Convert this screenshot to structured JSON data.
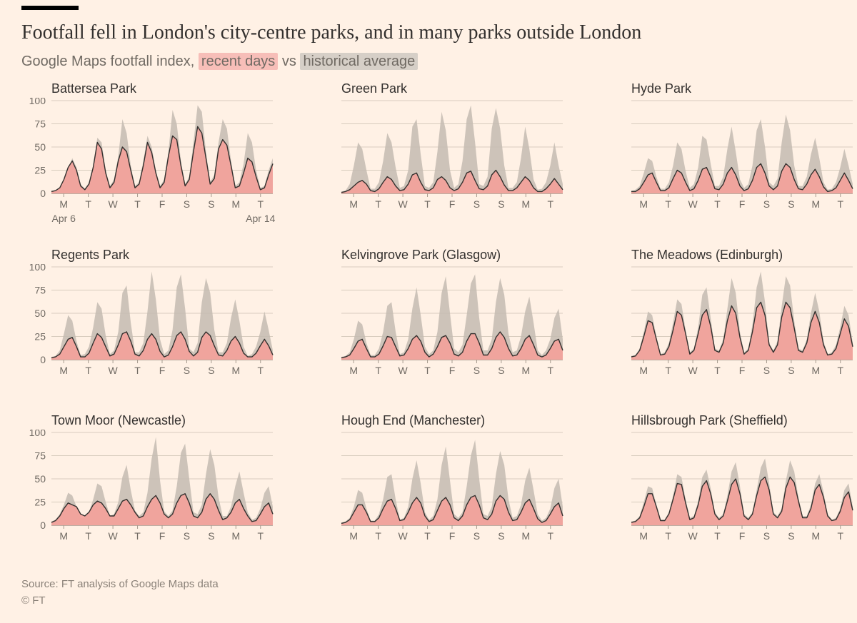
{
  "title": "Footfall fell in London's city-centre parks, and in many parks outside London",
  "subtitle": {
    "prefix": "Google Maps footfall index, ",
    "recent_label": "recent days",
    "mid": " vs ",
    "historical_label": "historical average"
  },
  "chart_style": {
    "type": "small-multiples-area",
    "background": "#fff1e5",
    "grid_color": "#d8ccbe",
    "baseline_color": "#a59a8e",
    "recent_fill": "#f4a19a",
    "recent_stroke": "#33302e",
    "historical_fill": "#c4bbb1",
    "recent_highlight_bg": "#f7beb8",
    "historical_highlight_bg": "#d6cfc7",
    "title_fontsize": 28,
    "subtitle_fontsize": 20,
    "panel_title_fontsize": 18,
    "tick_fontsize": 14,
    "ylim": [
      0,
      100
    ],
    "yticks": [
      0,
      25,
      50,
      75,
      100
    ],
    "xticks": [
      "M",
      "T",
      "W",
      "T",
      "F",
      "S",
      "S",
      "M",
      "T"
    ],
    "date_start": "Apr 6",
    "date_end": "Apr 14",
    "panel_plot_w": 310,
    "panel_plot_h": 130,
    "samples_per_day": 6,
    "days": 9
  },
  "panels": [
    {
      "title": "Battersea Park",
      "y_axis_side": "left",
      "show_dates": true,
      "historical": [
        3,
        3,
        5,
        12,
        25,
        38,
        28,
        10,
        5,
        12,
        30,
        60,
        55,
        25,
        8,
        15,
        40,
        80,
        65,
        30,
        8,
        12,
        35,
        62,
        50,
        25,
        8,
        15,
        45,
        90,
        75,
        35,
        10,
        18,
        55,
        95,
        88,
        45,
        12,
        20,
        55,
        80,
        70,
        35,
        8,
        12,
        32,
        65,
        55,
        25,
        6,
        8,
        25,
        38
      ],
      "recent": [
        2,
        3,
        6,
        15,
        28,
        35,
        25,
        8,
        4,
        10,
        28,
        55,
        48,
        22,
        6,
        12,
        35,
        50,
        45,
        25,
        6,
        10,
        30,
        55,
        44,
        22,
        6,
        12,
        40,
        62,
        58,
        30,
        8,
        15,
        45,
        72,
        65,
        38,
        10,
        16,
        48,
        58,
        52,
        30,
        6,
        8,
        22,
        38,
        34,
        18,
        4,
        6,
        20,
        32
      ]
    },
    {
      "title": "Green Park",
      "y_axis_side": "none",
      "historical": [
        2,
        3,
        10,
        30,
        55,
        48,
        25,
        5,
        5,
        12,
        35,
        65,
        55,
        28,
        6,
        8,
        25,
        72,
        80,
        42,
        8,
        6,
        12,
        45,
        88,
        68,
        25,
        6,
        10,
        35,
        80,
        95,
        55,
        10,
        8,
        18,
        70,
        92,
        70,
        30,
        6,
        6,
        12,
        38,
        72,
        48,
        15,
        4,
        5,
        12,
        30,
        55,
        30,
        10
      ],
      "recent": [
        1,
        2,
        4,
        8,
        12,
        14,
        10,
        3,
        2,
        5,
        12,
        18,
        15,
        8,
        3,
        4,
        10,
        20,
        22,
        12,
        4,
        3,
        6,
        15,
        18,
        14,
        6,
        3,
        5,
        12,
        22,
        24,
        14,
        5,
        4,
        8,
        20,
        25,
        18,
        9,
        3,
        3,
        6,
        12,
        18,
        14,
        6,
        2,
        2,
        5,
        10,
        16,
        10,
        4
      ]
    },
    {
      "title": "Hyde Park",
      "y_axis_side": "right",
      "historical": [
        3,
        4,
        8,
        22,
        38,
        35,
        18,
        5,
        5,
        12,
        30,
        55,
        48,
        24,
        6,
        10,
        28,
        62,
        58,
        32,
        8,
        8,
        18,
        48,
        72,
        45,
        15,
        6,
        10,
        30,
        68,
        80,
        50,
        12,
        8,
        16,
        55,
        85,
        68,
        30,
        8,
        8,
        18,
        42,
        60,
        38,
        12,
        4,
        5,
        12,
        28,
        48,
        30,
        10
      ],
      "recent": [
        2,
        2,
        5,
        12,
        20,
        22,
        12,
        3,
        3,
        6,
        16,
        25,
        22,
        12,
        3,
        5,
        14,
        26,
        28,
        18,
        5,
        4,
        10,
        22,
        28,
        20,
        8,
        3,
        5,
        14,
        28,
        32,
        22,
        8,
        4,
        8,
        24,
        32,
        28,
        15,
        5,
        4,
        10,
        20,
        26,
        18,
        7,
        2,
        3,
        6,
        14,
        22,
        14,
        5
      ]
    },
    {
      "title": "Regents Park",
      "y_axis_side": "left",
      "historical": [
        3,
        4,
        10,
        28,
        48,
        42,
        20,
        5,
        6,
        14,
        35,
        62,
        55,
        26,
        6,
        10,
        30,
        72,
        80,
        40,
        8,
        8,
        18,
        52,
        95,
        65,
        22,
        6,
        10,
        32,
        78,
        92,
        55,
        12,
        8,
        18,
        62,
        88,
        72,
        32,
        8,
        8,
        18,
        45,
        65,
        42,
        14,
        4,
        6,
        14,
        30,
        52,
        32,
        10
      ],
      "recent": [
        2,
        3,
        6,
        14,
        22,
        24,
        14,
        3,
        3,
        7,
        18,
        28,
        24,
        14,
        4,
        6,
        16,
        28,
        30,
        20,
        6,
        4,
        10,
        22,
        28,
        22,
        9,
        3,
        5,
        14,
        26,
        30,
        22,
        9,
        4,
        8,
        24,
        30,
        26,
        15,
        5,
        4,
        10,
        20,
        25,
        18,
        7,
        3,
        3,
        7,
        15,
        22,
        15,
        5
      ]
    },
    {
      "title": "Kelvingrove Park (Glasgow)",
      "y_axis_side": "none",
      "historical": [
        3,
        4,
        8,
        22,
        42,
        38,
        18,
        5,
        5,
        12,
        30,
        58,
        62,
        30,
        6,
        8,
        22,
        55,
        78,
        48,
        14,
        6,
        10,
        30,
        72,
        90,
        50,
        12,
        8,
        16,
        48,
        82,
        92,
        45,
        10,
        10,
        22,
        62,
        88,
        70,
        28,
        8,
        10,
        25,
        52,
        68,
        40,
        10,
        5,
        10,
        22,
        45,
        55,
        22
      ],
      "recent": [
        2,
        3,
        5,
        12,
        20,
        22,
        12,
        3,
        3,
        6,
        15,
        25,
        24,
        14,
        4,
        5,
        12,
        22,
        26,
        20,
        8,
        3,
        6,
        14,
        24,
        26,
        18,
        6,
        4,
        8,
        20,
        28,
        28,
        18,
        5,
        5,
        12,
        24,
        30,
        24,
        12,
        4,
        5,
        12,
        22,
        26,
        16,
        5,
        3,
        5,
        12,
        20,
        22,
        10
      ]
    },
    {
      "title": "The Meadows (Edinburgh)",
      "y_axis_side": "right",
      "historical": [
        4,
        5,
        12,
        30,
        52,
        48,
        25,
        6,
        8,
        18,
        40,
        65,
        60,
        32,
        8,
        12,
        35,
        70,
        78,
        45,
        12,
        10,
        22,
        55,
        88,
        72,
        30,
        8,
        12,
        38,
        78,
        95,
        62,
        18,
        10,
        20,
        58,
        90,
        80,
        42,
        12,
        10,
        22,
        50,
        72,
        52,
        20,
        6,
        8,
        16,
        35,
        58,
        48,
        18
      ],
      "recent": [
        3,
        4,
        10,
        25,
        42,
        40,
        22,
        5,
        6,
        14,
        32,
        52,
        48,
        28,
        6,
        10,
        28,
        48,
        54,
        36,
        10,
        8,
        18,
        42,
        58,
        50,
        24,
        6,
        10,
        30,
        56,
        62,
        48,
        16,
        8,
        16,
        46,
        62,
        56,
        34,
        10,
        8,
        18,
        40,
        52,
        40,
        16,
        5,
        6,
        12,
        28,
        44,
        36,
        14
      ]
    },
    {
      "title": "Town Moor (Newcastle)",
      "y_axis_side": "left",
      "historical": [
        4,
        6,
        12,
        22,
        35,
        32,
        20,
        8,
        8,
        14,
        28,
        45,
        42,
        25,
        10,
        12,
        25,
        52,
        65,
        38,
        16,
        10,
        14,
        35,
        72,
        95,
        48,
        15,
        10,
        16,
        42,
        78,
        88,
        50,
        14,
        12,
        22,
        55,
        82,
        65,
        30,
        10,
        10,
        20,
        42,
        58,
        35,
        14,
        6,
        8,
        18,
        35,
        42,
        20
      ],
      "recent": [
        3,
        5,
        10,
        18,
        24,
        22,
        20,
        12,
        10,
        14,
        22,
        26,
        24,
        18,
        10,
        10,
        18,
        26,
        28,
        22,
        14,
        8,
        10,
        20,
        28,
        32,
        24,
        12,
        8,
        12,
        24,
        32,
        34,
        24,
        10,
        8,
        14,
        28,
        34,
        28,
        16,
        6,
        8,
        14,
        24,
        28,
        18,
        10,
        4,
        5,
        12,
        20,
        24,
        12
      ]
    },
    {
      "title": "Hough End (Manchester)",
      "y_axis_side": "none",
      "historical": [
        3,
        4,
        8,
        20,
        38,
        35,
        18,
        5,
        5,
        12,
        28,
        52,
        55,
        28,
        6,
        8,
        20,
        50,
        70,
        45,
        14,
        6,
        10,
        28,
        65,
        85,
        48,
        12,
        8,
        14,
        42,
        75,
        92,
        50,
        12,
        10,
        20,
        55,
        80,
        65,
        28,
        8,
        10,
        22,
        48,
        62,
        38,
        12,
        5,
        8,
        18,
        40,
        50,
        20
      ],
      "recent": [
        2,
        3,
        6,
        14,
        22,
        22,
        14,
        4,
        4,
        8,
        18,
        26,
        28,
        18,
        5,
        6,
        14,
        24,
        30,
        24,
        10,
        4,
        6,
        16,
        26,
        30,
        22,
        8,
        5,
        10,
        22,
        30,
        32,
        22,
        8,
        6,
        12,
        26,
        32,
        28,
        14,
        5,
        6,
        14,
        24,
        28,
        18,
        7,
        3,
        5,
        12,
        20,
        24,
        10
      ]
    },
    {
      "title": "Hillsbrough Park (Sheffield)",
      "y_axis_side": "right",
      "historical": [
        4,
        5,
        10,
        25,
        42,
        40,
        22,
        6,
        6,
        14,
        32,
        55,
        52,
        28,
        8,
        10,
        26,
        52,
        60,
        40,
        14,
        8,
        12,
        32,
        58,
        68,
        42,
        12,
        8,
        14,
        38,
        62,
        72,
        45,
        14,
        10,
        18,
        48,
        70,
        58,
        30,
        10,
        10,
        22,
        45,
        55,
        36,
        12,
        6,
        8,
        18,
        38,
        45,
        20
      ],
      "recent": [
        3,
        4,
        8,
        20,
        34,
        34,
        20,
        5,
        5,
        12,
        28,
        45,
        44,
        24,
        6,
        8,
        22,
        42,
        48,
        34,
        12,
        6,
        10,
        26,
        44,
        50,
        34,
        10,
        6,
        12,
        32,
        48,
        52,
        38,
        12,
        8,
        15,
        40,
        52,
        46,
        26,
        8,
        8,
        18,
        38,
        44,
        30,
        10,
        5,
        6,
        15,
        30,
        36,
        16
      ]
    }
  ],
  "source": "Source: FT analysis of Google Maps data",
  "copyright": "© FT"
}
